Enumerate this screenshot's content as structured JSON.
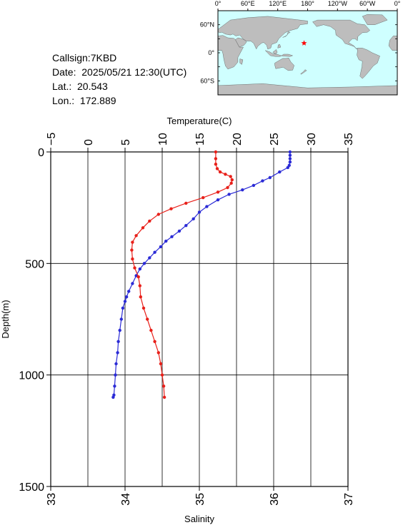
{
  "station": {
    "callsign_line": "Callsign:7KBD",
    "date_line": "Date:  2025/05/21 12:30(UTC)",
    "lat_line": "Lat.:  20.543",
    "lon_line": "Lon.:  172.889"
  },
  "map": {
    "top_labels": [
      "0°",
      "60°E",
      "120°E",
      "180°",
      "120°W",
      "60°W",
      "0°"
    ],
    "lat_labels": [
      "60°N",
      "0°",
      "60°S"
    ],
    "marker_lat": 20.543,
    "marker_lon": 172.889,
    "marker_color": "#ff0000",
    "ocean_color": "#cfffff",
    "land_color": "#bdbdbd"
  },
  "chart_data": {
    "type": "line",
    "xlabel_top": "Temperature(C)",
    "xlabel_bottom": "Salinity",
    "ylabel": "Depth(m)",
    "depth_range": [
      0,
      1500
    ],
    "depth_ticks": [
      "0",
      "500",
      "1000",
      "1500"
    ],
    "temperature_range": [
      -5,
      35
    ],
    "temperature_ticks": [
      "−5",
      "0",
      "5",
      "10",
      "15",
      "20",
      "25",
      "30",
      "35"
    ],
    "salinity_range": [
      33,
      37
    ],
    "salinity_ticks": [
      "33",
      "34",
      "35",
      "36",
      "37"
    ],
    "grid": true,
    "series": [
      {
        "name": "Temperature",
        "axis": "top",
        "color": "#2b2bd6",
        "points": [
          [
            27.2,
            0
          ],
          [
            27.2,
            15
          ],
          [
            27.2,
            30
          ],
          [
            27.2,
            45
          ],
          [
            27.1,
            60
          ],
          [
            26.9,
            70
          ],
          [
            25.8,
            90
          ],
          [
            24.5,
            115
          ],
          [
            23.5,
            130
          ],
          [
            22.3,
            150
          ],
          [
            20.8,
            170
          ],
          [
            19.0,
            190
          ],
          [
            17.5,
            215
          ],
          [
            16.0,
            245
          ],
          [
            15.0,
            270
          ],
          [
            14.2,
            300
          ],
          [
            13.2,
            330
          ],
          [
            12.3,
            355
          ],
          [
            11.3,
            380
          ],
          [
            10.5,
            400
          ],
          [
            9.8,
            425
          ],
          [
            9.0,
            450
          ],
          [
            8.3,
            475
          ],
          [
            7.6,
            500
          ],
          [
            7.0,
            525
          ],
          [
            6.5,
            555
          ],
          [
            6.0,
            590
          ],
          [
            5.5,
            625
          ],
          [
            5.2,
            650
          ],
          [
            5.0,
            670
          ],
          [
            4.7,
            700
          ],
          [
            4.5,
            750
          ],
          [
            4.3,
            800
          ],
          [
            4.1,
            850
          ],
          [
            4.0,
            900
          ],
          [
            3.8,
            950
          ],
          [
            3.7,
            1000
          ],
          [
            3.6,
            1050
          ],
          [
            3.5,
            1090
          ],
          [
            3.4,
            1100
          ]
        ]
      },
      {
        "name": "Salinity",
        "axis": "bottom",
        "color": "#e8201a",
        "points": [
          [
            35.22,
            0
          ],
          [
            35.22,
            30
          ],
          [
            35.22,
            55
          ],
          [
            35.24,
            75
          ],
          [
            35.28,
            90
          ],
          [
            35.35,
            100
          ],
          [
            35.42,
            110
          ],
          [
            35.44,
            125
          ],
          [
            35.43,
            140
          ],
          [
            35.38,
            160
          ],
          [
            35.25,
            180
          ],
          [
            35.05,
            205
          ],
          [
            34.82,
            230
          ],
          [
            34.62,
            255
          ],
          [
            34.45,
            280
          ],
          [
            34.33,
            310
          ],
          [
            34.24,
            340
          ],
          [
            34.15,
            375
          ],
          [
            34.1,
            405
          ],
          [
            34.09,
            440
          ],
          [
            34.1,
            480
          ],
          [
            34.13,
            520
          ],
          [
            34.18,
            560
          ],
          [
            34.2,
            600
          ],
          [
            34.21,
            650
          ],
          [
            34.25,
            700
          ],
          [
            34.3,
            750
          ],
          [
            34.35,
            800
          ],
          [
            34.4,
            850
          ],
          [
            34.45,
            900
          ],
          [
            34.48,
            950
          ],
          [
            34.5,
            1000
          ],
          [
            34.52,
            1050
          ],
          [
            34.53,
            1100
          ]
        ]
      }
    ]
  }
}
